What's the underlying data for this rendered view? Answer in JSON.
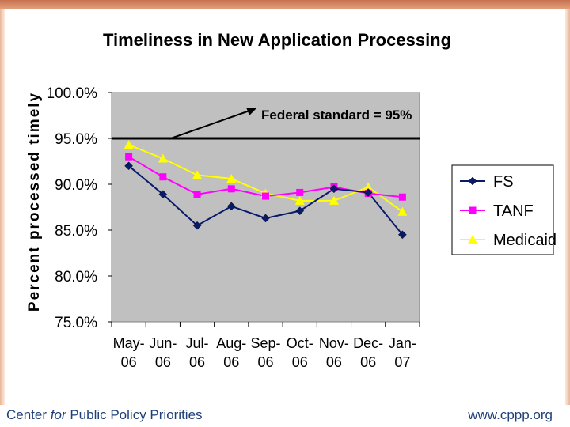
{
  "chart_data": {
    "type": "line",
    "title": "Timeliness in New Application Processing",
    "ylabel": "Percent processed timely",
    "xlabel": "",
    "categories": [
      [
        "May-",
        "06"
      ],
      [
        "Jun-",
        "06"
      ],
      [
        "Jul-",
        "06"
      ],
      [
        "Aug-",
        "06"
      ],
      [
        "Sep-",
        "06"
      ],
      [
        "Oct-",
        "06"
      ],
      [
        "Nov-",
        "06"
      ],
      [
        "Dec-",
        "06"
      ],
      [
        "Jan-",
        "07"
      ]
    ],
    "yticks": [
      "100.0%",
      "95.0%",
      "90.0%",
      "85.0%",
      "80.0%",
      "75.0%"
    ],
    "ylim": [
      75,
      100
    ],
    "grid": false,
    "legend_position": "right",
    "series": [
      {
        "name": "FS",
        "color": "#0a1a6b",
        "marker": "diamond",
        "values": [
          92.0,
          88.9,
          85.5,
          87.6,
          86.3,
          87.1,
          89.5,
          89.1,
          84.5
        ]
      },
      {
        "name": "TANF",
        "color": "#ff00ff",
        "marker": "square",
        "values": [
          93.0,
          90.8,
          88.9,
          89.5,
          88.7,
          89.1,
          89.7,
          89.0,
          88.6
        ]
      },
      {
        "name": "Medicaid",
        "color": "#ffff00",
        "marker": "triangle",
        "values": [
          94.3,
          92.8,
          91.0,
          90.6,
          89.0,
          88.2,
          88.2,
          89.7,
          87.0
        ]
      }
    ],
    "reference_line": {
      "value": 95,
      "color": "#000000"
    },
    "annotation": "Federal standard = 95%"
  },
  "footer": {
    "org_before": "Center ",
    "org_italic": "for",
    "org_after": " Public Policy Priorities",
    "url": "www.cppp.org"
  }
}
